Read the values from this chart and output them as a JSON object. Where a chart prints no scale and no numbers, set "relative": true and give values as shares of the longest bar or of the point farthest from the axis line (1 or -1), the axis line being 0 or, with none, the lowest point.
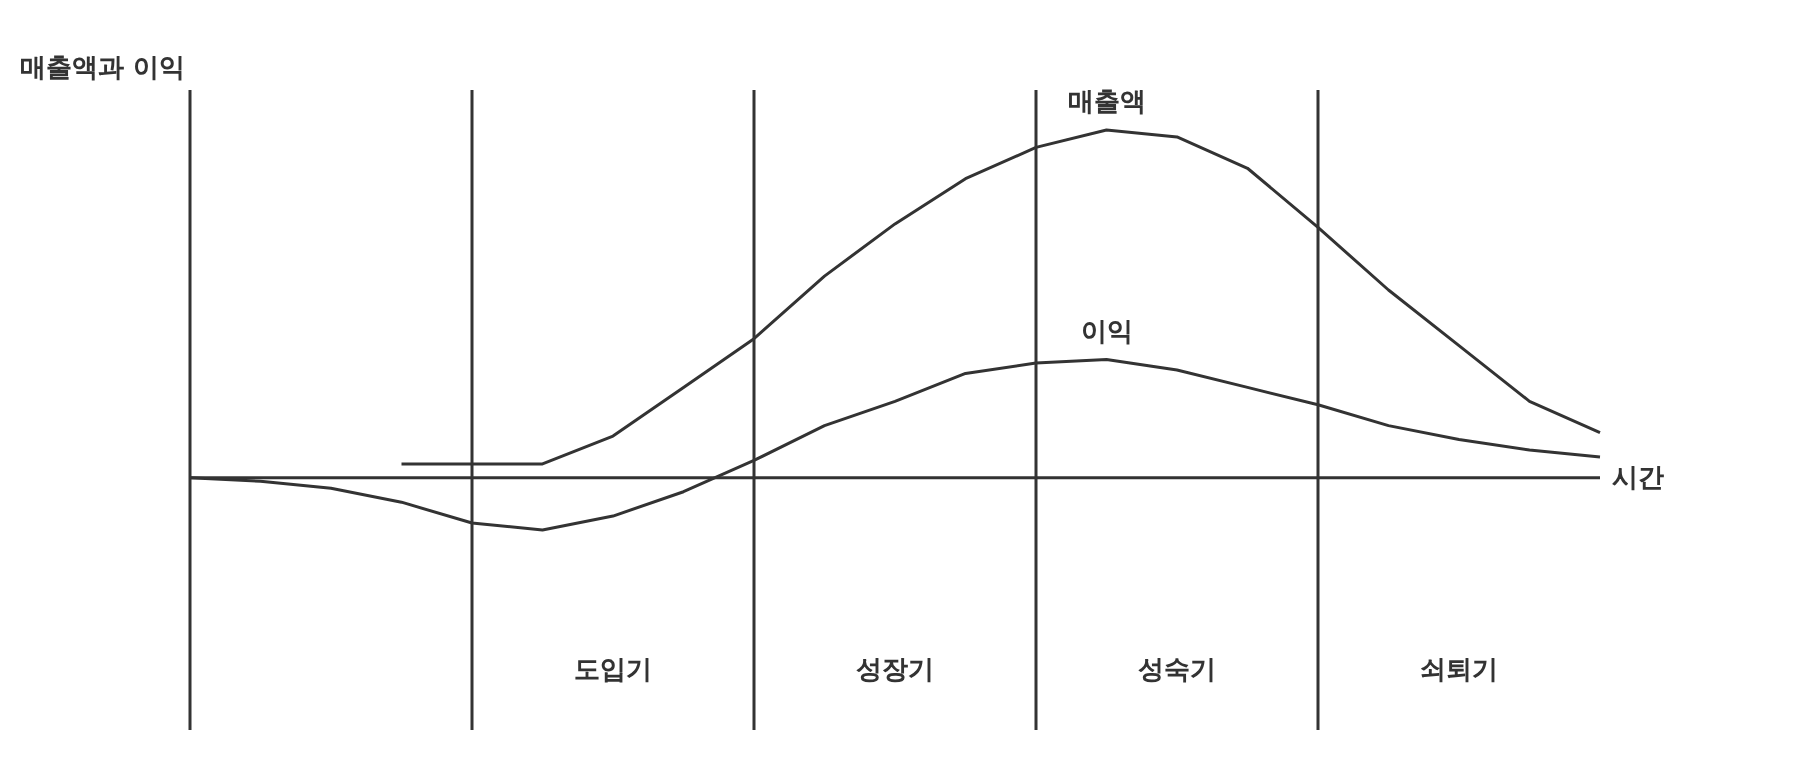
{
  "chart_data": {
    "type": "line",
    "relative": true,
    "xlabel": "시간",
    "ylabel": "매출액과 이익",
    "grid": "x",
    "categories": [
      null,
      null,
      null,
      null,
      null,
      null,
      null,
      null,
      null,
      null,
      null,
      null,
      null,
      null,
      null,
      null,
      null,
      null,
      null,
      null,
      null
    ],
    "series": [
      {
        "name": "매출액",
        "color": "#333333",
        "values": [
          null,
          null,
          null,
          0.04,
          0.04,
          0.04,
          0.12,
          0.26,
          0.4,
          0.58,
          0.73,
          0.86,
          0.95,
          1,
          0.98,
          0.89,
          0.72,
          0.54,
          0.38,
          0.22,
          0.13
        ]
      },
      {
        "name": "이익",
        "color": "#333333",
        "values": [
          0,
          -0.01,
          -0.03,
          -0.07,
          -0.13,
          -0.15,
          -0.11,
          -0.04,
          0.05,
          0.15,
          0.22,
          0.3,
          0.33,
          0.34,
          0.31,
          0.26,
          0.21,
          0.15,
          0.11,
          0.08,
          0.06
        ]
      }
    ],
    "annotations": [
      "도입기",
      "성장기",
      "성숙기",
      "쇠퇴기"
    ]
  }
}
